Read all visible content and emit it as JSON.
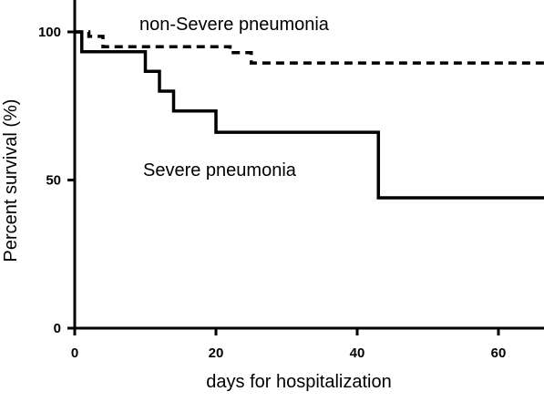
{
  "chart_data": {
    "type": "line",
    "step": true,
    "xlabel": "days for hospitalization",
    "ylabel": "Percent survival (%)",
    "xlim": [
      0,
      70
    ],
    "ylim": [
      0,
      100
    ],
    "xticks": [
      0,
      20,
      40,
      60
    ],
    "yticks": [
      0,
      50,
      100
    ],
    "grid": false,
    "legend": "none",
    "series": [
      {
        "name": "non-Severe pneumonia",
        "line_style": "dashed",
        "color": "#000000",
        "x": [
          0,
          2,
          4,
          22,
          25,
          68
        ],
        "y": [
          100,
          98.5,
          95,
          93,
          89.5,
          89.5
        ]
      },
      {
        "name": "Severe pneumonia",
        "line_style": "solid",
        "color": "#000000",
        "x": [
          0,
          1,
          10,
          12,
          14,
          20,
          43,
          68
        ],
        "y": [
          100,
          93.3,
          86.7,
          80,
          73.3,
          66.1,
          44,
          44
        ]
      }
    ],
    "annotations": {
      "non_severe": "non-Severe pneumonia",
      "severe": "Severe pneumonia"
    }
  }
}
